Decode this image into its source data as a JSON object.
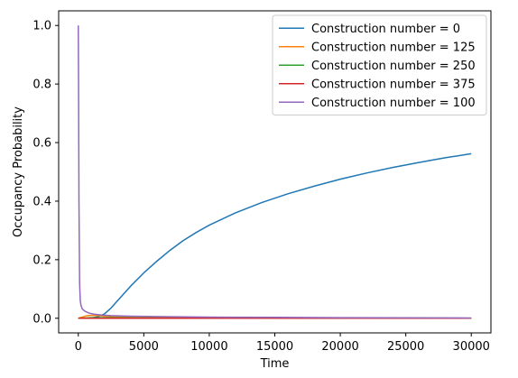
{
  "chart_data": {
    "type": "line",
    "title": "",
    "xlabel": "Time",
    "ylabel": "Occupancy Probability",
    "xlim": [
      -1500,
      31500
    ],
    "ylim": [
      -0.05,
      1.05
    ],
    "xticks": [
      0,
      5000,
      10000,
      15000,
      20000,
      25000,
      30000
    ],
    "xtick_labels": [
      "0",
      "5000",
      "10000",
      "15000",
      "20000",
      "25000",
      "30000"
    ],
    "yticks": [
      0.0,
      0.2,
      0.4,
      0.6,
      0.8,
      1.0
    ],
    "ytick_labels": [
      "0.0",
      "0.2",
      "0.4",
      "0.6",
      "0.8",
      "1.0"
    ],
    "grid": false,
    "legend_position": "top-right",
    "series": [
      {
        "name": "Construction number = 0",
        "color": "#1f77b4",
        "x": [
          0,
          500,
          1000,
          1500,
          2000,
          2500,
          3000,
          4000,
          5000,
          6000,
          7000,
          8000,
          9000,
          10000,
          12000,
          14000,
          16000,
          18000,
          20000,
          22000,
          24000,
          26000,
          28000,
          30000
        ],
        "y": [
          0.0,
          0.0,
          0.001,
          0.005,
          0.015,
          0.035,
          0.06,
          0.11,
          0.155,
          0.195,
          0.232,
          0.265,
          0.293,
          0.318,
          0.36,
          0.395,
          0.425,
          0.451,
          0.475,
          0.496,
          0.515,
          0.532,
          0.548,
          0.562
        ]
      },
      {
        "name": "Construction number = 125",
        "color": "#ff7f0e",
        "x": [
          0,
          300,
          600,
          1000,
          1500,
          2000,
          3000,
          4000,
          6000,
          10000,
          20000,
          30000
        ],
        "y": [
          0.0,
          0.004,
          0.008,
          0.01,
          0.009,
          0.007,
          0.005,
          0.003,
          0.002,
          0.001,
          0.0,
          0.0
        ]
      },
      {
        "name": "Construction number = 250",
        "color": "#2ca02c",
        "x": [
          0,
          500,
          1000,
          2000,
          5000,
          10000,
          20000,
          30000
        ],
        "y": [
          0.0,
          0.001,
          0.002,
          0.002,
          0.001,
          0.0,
          0.0,
          0.0
        ]
      },
      {
        "name": "Construction number = 375",
        "color": "#d62728",
        "x": [
          0,
          1000,
          5000,
          10000,
          20000,
          30000
        ],
        "y": [
          0.0,
          0.0,
          0.0,
          0.0,
          0.0,
          0.0
        ]
      },
      {
        "name": "Construction number = 100",
        "color": "#9467bd",
        "x": [
          0,
          20,
          50,
          100,
          150,
          200,
          300,
          500,
          800,
          1200,
          1800,
          2500,
          4000,
          6000,
          10000,
          15000,
          20000,
          25000,
          30000
        ],
        "y": [
          1.0,
          0.8,
          0.4,
          0.12,
          0.06,
          0.045,
          0.032,
          0.024,
          0.018,
          0.014,
          0.011,
          0.009,
          0.007,
          0.006,
          0.004,
          0.003,
          0.002,
          0.0015,
          0.001
        ]
      }
    ]
  }
}
